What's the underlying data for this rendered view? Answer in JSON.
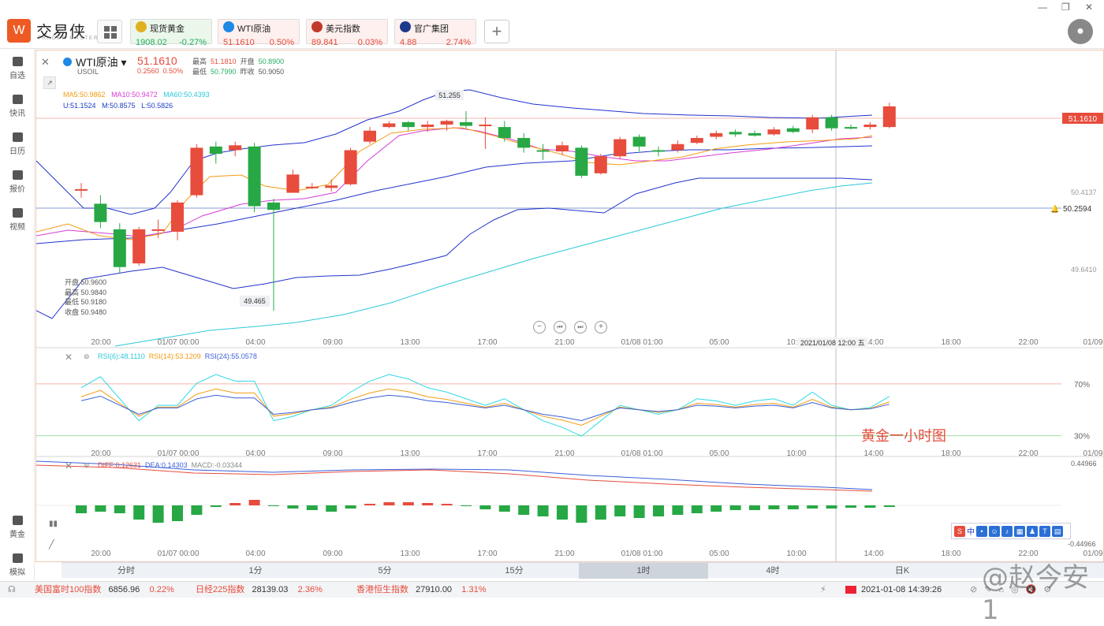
{
  "app": {
    "brand": "交易侠",
    "brand_sub": "TRADER MASTER",
    "logo_glyph": "W"
  },
  "quotes": [
    {
      "name": "现货黄金",
      "price": "1908.02",
      "change": "-0.27%",
      "icon": "gold-icon",
      "color": "#27ae60",
      "active": true
    },
    {
      "name": "WTI原油",
      "price": "51.1610",
      "change": "0.50%",
      "icon": "oil-icon",
      "color": "#e74c3c"
    },
    {
      "name": "美元指数",
      "price": "89.841",
      "change": "0.03%",
      "icon": "us-flag-icon",
      "color": "#e74c3c"
    },
    {
      "name": "官广集团",
      "price": "4.88",
      "change": "2.74%",
      "icon": "stock-icon",
      "color": "#e74c3c"
    }
  ],
  "sidebar": [
    {
      "label": "自选",
      "icon": "bookmark-icon"
    },
    {
      "label": "快讯",
      "icon": "news-icon"
    },
    {
      "label": "日历",
      "icon": "calendar-icon"
    },
    {
      "label": "报价",
      "icon": "quote-icon"
    },
    {
      "label": "视频",
      "icon": "video-icon"
    },
    {
      "label": "黄金",
      "icon": "gold-bars-icon"
    },
    {
      "label": "模拟",
      "icon": "wallet-icon"
    }
  ],
  "header": {
    "symbol": "WTI原油",
    "code": "USOIL",
    "price": "51.1610",
    "change": "0.2560",
    "change_pct": "0.50%",
    "high_label": "最高",
    "high": "51.1810",
    "open_label": "开盘",
    "open": "50.8900",
    "low_label": "最低",
    "low": "50.7990",
    "prev_label": "昨收",
    "prev": "50.9050"
  },
  "indicators": {
    "ma5": "MA5:50.9862",
    "ma10": "MA10:50.9472",
    "ma60": "MA60:50.4393",
    "u": "U:51.1524",
    "m": "M:50.8575",
    "l": "L:50.5826",
    "rsi6": "RSI(6):48.1110",
    "rsi14": "RSI(14):53.1209",
    "rsi24": "RSI(24):55.0578",
    "dif": "DIFF:0.12631",
    "dea": "DEA:0.14303",
    "macd": "MACD:-0.03344"
  },
  "ohlc_box": {
    "open": "开盘 50.9600",
    "high": "最高 50.9840",
    "low": "最低 50.9180",
    "close": "收盘 50.9480"
  },
  "price_labels": {
    "current": "51.1610",
    "alert": "50.2594",
    "level1": "50.4137",
    "level2": "49.6410",
    "peak": "51.255",
    "trough": "49.465",
    "macd_top": "0.44966",
    "macd_bottom": "-0.44966",
    "rsi70": "70%",
    "rsi30": "30%"
  },
  "crosshair_time": "2021/01/08 12:00 五",
  "annotation": "黄金一小时图",
  "x_labels": [
    "20:00",
    "01/07 00:00",
    "04:00",
    "09:00",
    "13:00",
    "17:00",
    "21:00",
    "01/08 01:00",
    "05:00",
    "10:00",
    "14:00",
    "18:00",
    "22:00",
    "01/09"
  ],
  "periods": [
    "分时",
    "1分",
    "5分",
    "15分",
    "1时",
    "4时",
    "日K"
  ],
  "active_period": "1时",
  "status": [
    {
      "name": "美国富时100指数",
      "value": "6856.96",
      "pct": "0.22%"
    },
    {
      "name": "日经225指数",
      "value": "28139.03",
      "pct": "2.36%"
    },
    {
      "name": "香港恒生指数",
      "value": "27910.00",
      "pct": "1.31%"
    }
  ],
  "clock": "2021-01-08 14:39:26",
  "watermark": "@赵今安1",
  "chart_data": {
    "type": "candlestick",
    "candles": [
      {
        "o": 50.47,
        "c": 50.47,
        "h": 50.52,
        "l": 50.4
      },
      {
        "o": 50.35,
        "c": 50.2,
        "h": 50.42,
        "l": 50.15
      },
      {
        "o": 50.14,
        "c": 49.83,
        "h": 50.19,
        "l": 49.78
      },
      {
        "o": 49.86,
        "c": 50.14,
        "h": 50.16,
        "l": 49.84
      },
      {
        "o": 50.14,
        "c": 50.14,
        "h": 50.22,
        "l": 50.07
      },
      {
        "o": 50.12,
        "c": 50.36,
        "h": 50.38,
        "l": 50.05
      },
      {
        "o": 50.42,
        "c": 50.81,
        "h": 50.84,
        "l": 50.4
      },
      {
        "o": 50.82,
        "c": 50.76,
        "h": 50.86,
        "l": 50.68
      },
      {
        "o": 50.79,
        "c": 50.83,
        "h": 50.86,
        "l": 50.74
      },
      {
        "o": 50.82,
        "c": 50.33,
        "h": 50.85,
        "l": 50.28
      },
      {
        "o": 50.36,
        "c": 50.3,
        "h": 50.39,
        "l": 49.47
      },
      {
        "o": 50.44,
        "c": 50.59,
        "h": 50.63,
        "l": 50.44
      },
      {
        "o": 50.48,
        "c": 50.49,
        "h": 50.52,
        "l": 50.47
      },
      {
        "o": 50.48,
        "c": 50.5,
        "h": 50.55,
        "l": 50.45
      },
      {
        "o": 50.51,
        "c": 50.79,
        "h": 50.81,
        "l": 50.5
      },
      {
        "o": 50.86,
        "c": 50.95,
        "h": 50.98,
        "l": 50.84
      },
      {
        "o": 50.98,
        "c": 51.01,
        "h": 51.03,
        "l": 50.97
      },
      {
        "o": 51.02,
        "c": 50.98,
        "h": 51.03,
        "l": 50.95
      },
      {
        "o": 50.98,
        "c": 51.0,
        "h": 51.03,
        "l": 50.94
      },
      {
        "o": 51.0,
        "c": 51.03,
        "h": 51.04,
        "l": 50.95
      },
      {
        "o": 51.02,
        "c": 50.99,
        "h": 51.11,
        "l": 50.97
      },
      {
        "o": 51.0,
        "c": 51.0,
        "h": 51.06,
        "l": 50.8
      },
      {
        "o": 50.98,
        "c": 50.89,
        "h": 51.03,
        "l": 50.86
      },
      {
        "o": 50.89,
        "c": 50.81,
        "h": 50.93,
        "l": 50.77
      },
      {
        "o": 50.79,
        "c": 50.78,
        "h": 50.84,
        "l": 50.71
      },
      {
        "o": 50.78,
        "c": 50.83,
        "h": 50.86,
        "l": 50.75
      },
      {
        "o": 50.81,
        "c": 50.58,
        "h": 50.83,
        "l": 50.56
      },
      {
        "o": 50.6,
        "c": 50.74,
        "h": 50.76,
        "l": 50.59
      },
      {
        "o": 50.74,
        "c": 50.88,
        "h": 50.9,
        "l": 50.72
      },
      {
        "o": 50.9,
        "c": 50.82,
        "h": 50.92,
        "l": 50.78
      },
      {
        "o": 50.79,
        "c": 50.78,
        "h": 50.82,
        "l": 50.74
      },
      {
        "o": 50.79,
        "c": 50.84,
        "h": 50.87,
        "l": 50.77
      },
      {
        "o": 50.85,
        "c": 50.89,
        "h": 50.91,
        "l": 50.84
      },
      {
        "o": 50.9,
        "c": 50.93,
        "h": 50.95,
        "l": 50.88
      },
      {
        "o": 50.94,
        "c": 50.92,
        "h": 50.96,
        "l": 50.9
      },
      {
        "o": 50.93,
        "c": 50.91,
        "h": 50.95,
        "l": 50.9
      },
      {
        "o": 50.92,
        "c": 50.96,
        "h": 50.98,
        "l": 50.91
      },
      {
        "o": 50.97,
        "c": 50.94,
        "h": 50.99,
        "l": 50.93
      },
      {
        "o": 50.96,
        "c": 51.06,
        "h": 51.08,
        "l": 50.93
      },
      {
        "o": 51.06,
        "c": 50.97,
        "h": 51.08,
        "l": 50.95
      },
      {
        "o": 50.98,
        "c": 50.97,
        "h": 51.0,
        "l": 50.96
      },
      {
        "o": 50.98,
        "c": 51.0,
        "h": 51.02,
        "l": 50.96
      },
      {
        "o": 50.98,
        "c": 51.15,
        "h": 51.18,
        "l": 50.97
      }
    ],
    "y_range": [
      49.2,
      51.35
    ],
    "rsi": [
      60,
      65,
      55,
      45,
      52,
      52,
      62,
      66,
      63,
      63,
      45,
      47,
      50,
      52,
      58,
      63,
      66,
      64,
      60,
      58,
      55,
      52,
      55,
      50,
      45,
      42,
      38,
      45,
      52,
      50,
      48,
      50,
      55,
      54,
      52,
      54,
      55,
      52,
      58,
      52,
      50,
      51,
      56
    ]
  }
}
